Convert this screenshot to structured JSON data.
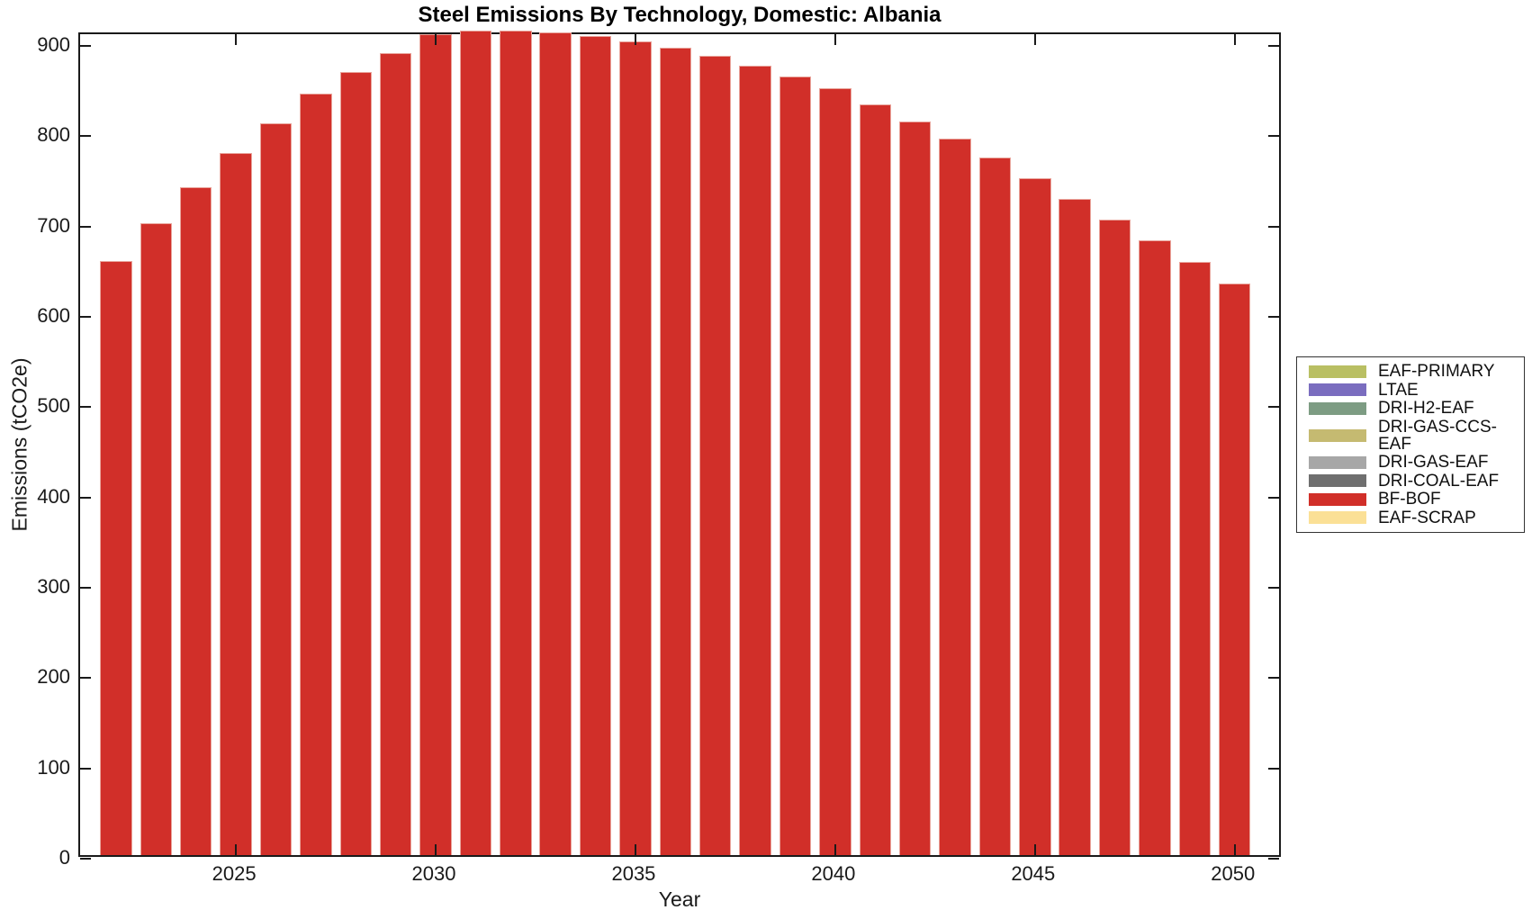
{
  "figure": {
    "title": "Steel Emissions By Technology, Domestic: Albania",
    "xlabel": "Year",
    "ylabel": "Emissions (tCO2e)"
  },
  "chart_data": {
    "type": "bar",
    "stacked": true,
    "title": "Steel Emissions By Technology, Domestic: Albania",
    "xlabel": "Year",
    "ylabel": "Emissions (tCO2e)",
    "categories": [
      2022,
      2023,
      2024,
      2025,
      2026,
      2027,
      2028,
      2029,
      2030,
      2031,
      2032,
      2033,
      2034,
      2035,
      2036,
      2037,
      2038,
      2039,
      2040,
      2041,
      2042,
      2043,
      2044,
      2045,
      2046,
      2047,
      2048,
      2049,
      2050
    ],
    "series": [
      {
        "name": "BF-BOF",
        "color": "#d12f29",
        "values": [
          658,
          700,
          740,
          777,
          810,
          843,
          867,
          888,
          909,
          913,
          913,
          911,
          907,
          901,
          894,
          885,
          874,
          862,
          849,
          831,
          812,
          793,
          772,
          750,
          727,
          704,
          681,
          657,
          633
        ]
      }
    ],
    "legend_entries": [
      {
        "label": "EAF-PRIMARY",
        "color": "#b9bf63"
      },
      {
        "label": "LTAE",
        "color": "#7a6dbf"
      },
      {
        "label": "DRI-H2-EAF",
        "color": "#7d9c83"
      },
      {
        "label": "DRI-GAS-CCS-EAF",
        "color": "#c5ba71"
      },
      {
        "label": "DRI-GAS-EAF",
        "color": "#a7a7a7"
      },
      {
        "label": "DRI-COAL-EAF",
        "color": "#6f6f6f"
      },
      {
        "label": "BF-BOF",
        "color": "#d12f29"
      },
      {
        "label": "EAF-SCRAP",
        "color": "#fbe096"
      }
    ],
    "xlim": [
      2021.1,
      2051.2
    ],
    "ylim": [
      0,
      913
    ],
    "xticks": [
      2025,
      2030,
      2035,
      2040,
      2045,
      2050
    ],
    "yticks": [
      0,
      100,
      200,
      300,
      400,
      500,
      600,
      700,
      800,
      900
    ],
    "bar_width_fraction": 0.8,
    "grid": false,
    "legend_position": "right-outside",
    "bar_face_color": "#d12f29",
    "bar_edge_color": "#e9a59c",
    "axis_color": "#1a1a1a",
    "background_color": "#ffffff"
  }
}
